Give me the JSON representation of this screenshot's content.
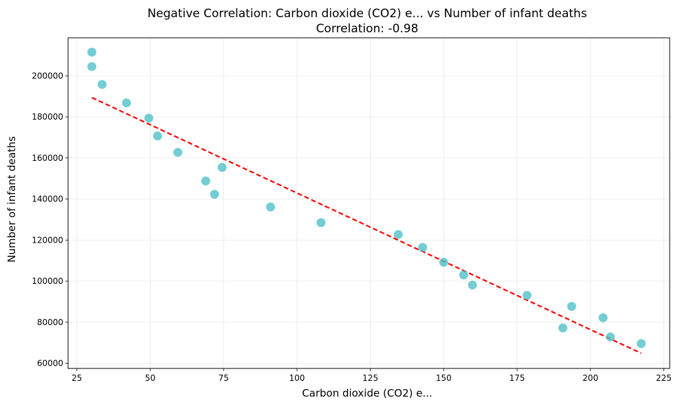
{
  "chart_data": {
    "type": "scatter",
    "title": "Negative Correlation: Carbon dioxide (CO2) e... vs Number of infant deaths",
    "subtitle": "Correlation: -0.98",
    "xlabel": "Carbon dioxide (CO2) e...",
    "ylabel": "Number of infant deaths",
    "xlim": [
      22,
      227
    ],
    "ylim": [
      57500,
      218500
    ],
    "xticks": [
      25,
      50,
      75,
      100,
      125,
      150,
      175,
      200,
      225
    ],
    "yticks": [
      60000,
      80000,
      100000,
      120000,
      140000,
      160000,
      180000,
      200000
    ],
    "grid": true,
    "points": {
      "color": "#4bbfc6",
      "x": [
        30.1,
        30.1,
        33.6,
        41.9,
        49.5,
        52.5,
        59.4,
        68.9,
        71.9,
        74.5,
        91.0,
        108.2,
        134.5,
        142.8,
        150.0,
        156.8,
        159.8,
        178.4,
        190.6,
        193.6,
        204.3,
        206.8,
        217.3
      ],
      "y": [
        211500,
        204500,
        195800,
        186800,
        179400,
        170700,
        162700,
        148800,
        142300,
        155400,
        136100,
        128500,
        122700,
        116400,
        109200,
        103000,
        98100,
        93100,
        77200,
        87700,
        82200,
        72800,
        69600
      ]
    },
    "trendline": {
      "color": "#ff0000",
      "style": "dashed",
      "x": [
        30.1,
        217.3
      ],
      "y": [
        189400,
        64900
      ]
    }
  }
}
